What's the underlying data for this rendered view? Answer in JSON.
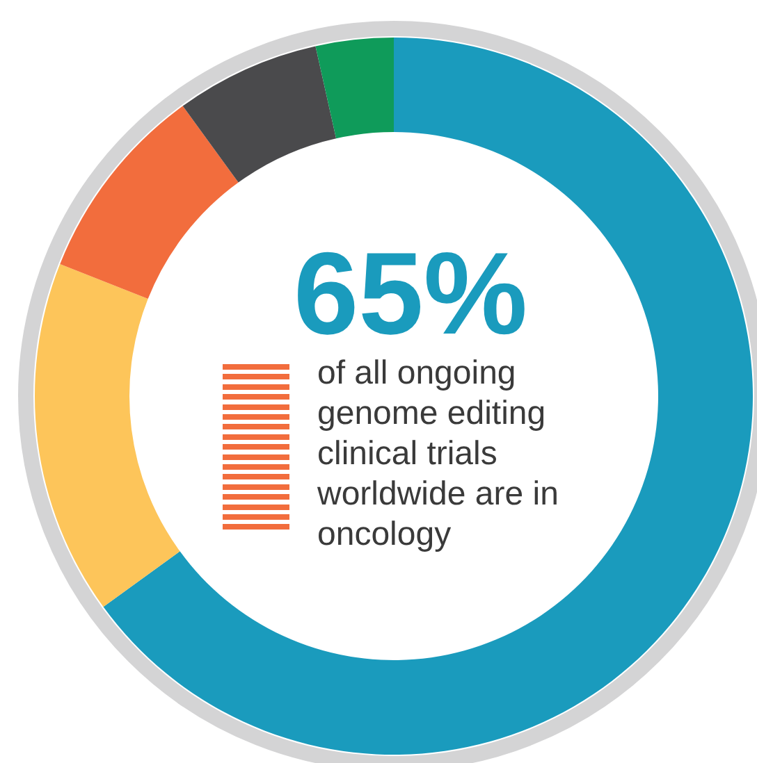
{
  "chart_data": {
    "type": "donut",
    "categories": [
      null,
      null,
      null,
      null,
      null
    ],
    "values": [
      65,
      16,
      9,
      6.5,
      3.5
    ],
    "colors": [
      "#1a9bbd",
      "#fdc55a",
      "#f26d3d",
      "#4a4a4c",
      "#0f9b5a"
    ],
    "annotations": [
      "65%",
      "of all ongoing genome editing clinical trials worldwide are in oncology"
    ]
  }
}
